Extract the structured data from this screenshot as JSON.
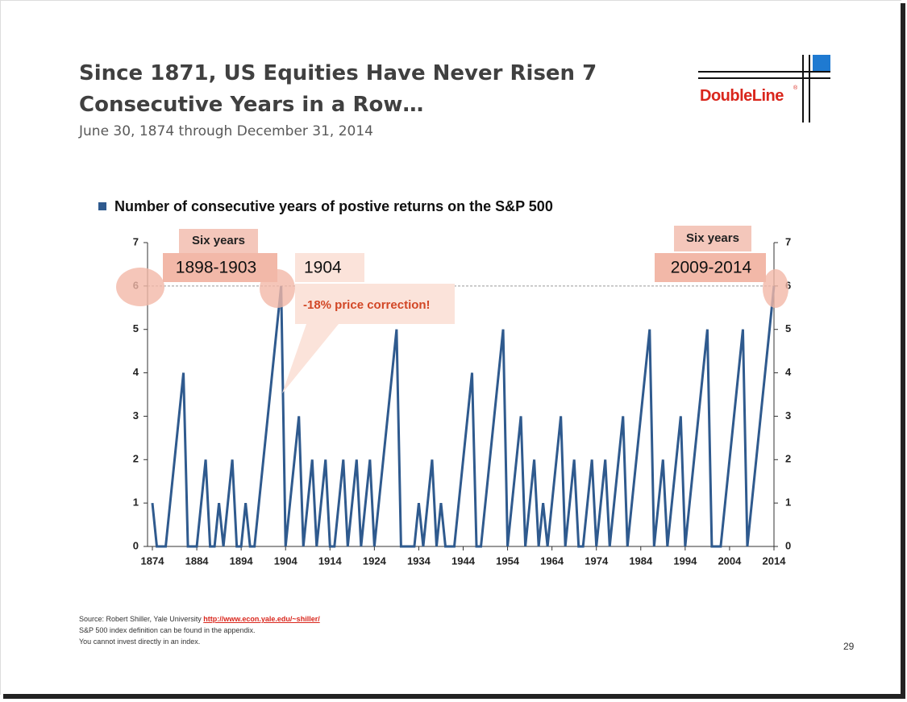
{
  "header": {
    "title_lines": [
      "Since 1871, US Equities Have Never Risen 7",
      "Consecutive Years in a Row…"
    ],
    "subtitle": "June 30, 1874 through December 31, 2014",
    "logo": "DoubleLine",
    "logo_mark": "®"
  },
  "chart_data": {
    "type": "line",
    "x": [
      1874,
      1875,
      1876,
      1877,
      1878,
      1879,
      1880,
      1881,
      1882,
      1883,
      1884,
      1885,
      1886,
      1887,
      1888,
      1889,
      1890,
      1891,
      1892,
      1893,
      1894,
      1895,
      1896,
      1897,
      1898,
      1899,
      1900,
      1901,
      1902,
      1903,
      1904,
      1905,
      1906,
      1907,
      1908,
      1909,
      1910,
      1911,
      1912,
      1913,
      1914,
      1915,
      1916,
      1917,
      1918,
      1919,
      1920,
      1921,
      1922,
      1923,
      1924,
      1925,
      1926,
      1927,
      1928,
      1929,
      1930,
      1931,
      1932,
      1933,
      1934,
      1935,
      1936,
      1937,
      1938,
      1939,
      1940,
      1941,
      1942,
      1943,
      1944,
      1945,
      1946,
      1947,
      1948,
      1949,
      1950,
      1951,
      1952,
      1953,
      1954,
      1955,
      1956,
      1957,
      1958,
      1959,
      1960,
      1961,
      1962,
      1963,
      1964,
      1965,
      1966,
      1967,
      1968,
      1969,
      1970,
      1971,
      1972,
      1973,
      1974,
      1975,
      1976,
      1977,
      1978,
      1979,
      1980,
      1981,
      1982,
      1983,
      1984,
      1985,
      1986,
      1987,
      1988,
      1989,
      1990,
      1991,
      1992,
      1993,
      1994,
      1995,
      1996,
      1997,
      1998,
      1999,
      2000,
      2001,
      2002,
      2003,
      2004,
      2005,
      2006,
      2007,
      2008,
      2009,
      2010,
      2011,
      2012,
      2013,
      2014
    ],
    "series": [
      {
        "name": "Number of consecutive years of postive returns on the S&P 500",
        "color": "#2f5a8e",
        "values": [
          1,
          0,
          0,
          0,
          1,
          2,
          3,
          4,
          0,
          0,
          0,
          1,
          2,
          0,
          0,
          1,
          0,
          1,
          2,
          0,
          0,
          1,
          0,
          0,
          1,
          2,
          3,
          4,
          5,
          6,
          0,
          1,
          2,
          3,
          0,
          1,
          2,
          0,
          1,
          2,
          0,
          0,
          1,
          2,
          0,
          1,
          2,
          0,
          1,
          2,
          0,
          1,
          2,
          3,
          4,
          5,
          0,
          0,
          0,
          0,
          1,
          0,
          1,
          2,
          0,
          1,
          0,
          0,
          0,
          1,
          2,
          3,
          4,
          0,
          0,
          1,
          2,
          3,
          4,
          5,
          0,
          1,
          2,
          3,
          0,
          1,
          2,
          0,
          1,
          0,
          1,
          2,
          3,
          0,
          1,
          2,
          0,
          0,
          1,
          2,
          0,
          1,
          2,
          0,
          1,
          2,
          3,
          0,
          1,
          2,
          3,
          4,
          5,
          0,
          1,
          2,
          0,
          1,
          2,
          3,
          0,
          1,
          2,
          3,
          4,
          5,
          0,
          0,
          0,
          1,
          2,
          3,
          4,
          5,
          0,
          1,
          2,
          3,
          4,
          5,
          6
        ]
      }
    ],
    "xlim": [
      1874,
      2014
    ],
    "xticks": [
      1874,
      1884,
      1894,
      1904,
      1914,
      1924,
      1934,
      1944,
      1954,
      1964,
      1974,
      1984,
      1994,
      2004,
      2014
    ],
    "ylim": [
      0,
      7
    ],
    "yticks": [
      0,
      1,
      2,
      3,
      4,
      5,
      6,
      7
    ],
    "y2lim": [
      0,
      7
    ],
    "y2ticks": [
      0,
      1,
      2,
      3,
      4,
      5,
      6,
      7
    ],
    "reference_line": 6,
    "annotations": [
      "Six years",
      "1898-1903",
      "1904",
      "-18% price correction!",
      "Six years",
      "2009-2014"
    ]
  },
  "footer": {
    "source": "Source: Robert Shiller, Yale University",
    "link": "http://www.econ.yale.edu/~shiller/",
    "notes": [
      "S&P 500 index definition can be found in the appendix.",
      "You cannot invest directly in an index."
    ],
    "page_number": "29"
  }
}
